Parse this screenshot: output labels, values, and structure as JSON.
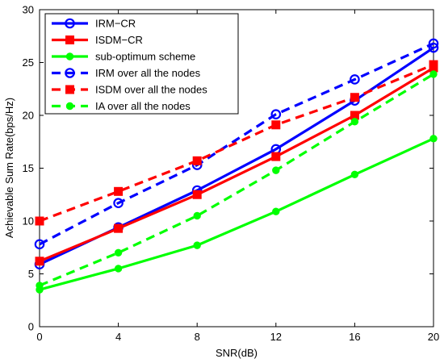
{
  "chart_data": {
    "type": "line",
    "title": "",
    "xlabel": "SNR(dB)",
    "ylabel": "Achievable Sum Rate(bps/Hz)",
    "x": [
      0,
      4,
      8,
      12,
      16,
      20
    ],
    "xlim": [
      0,
      20
    ],
    "ylim": [
      0,
      30
    ],
    "xticks": [
      "0",
      "4",
      "8",
      "12",
      "16",
      "20"
    ],
    "yticks": [
      "0",
      "5",
      "10",
      "15",
      "20",
      "25",
      "30"
    ],
    "grid": false,
    "legend_position": "top-left",
    "series": [
      {
        "name": "IRM−CR",
        "values": [
          5.9,
          9.4,
          12.9,
          16.8,
          21.4,
          26.4
        ],
        "color": "#0000ff",
        "dash": "solid",
        "marker": "circle"
      },
      {
        "name": "ISDM−CR",
        "values": [
          6.2,
          9.3,
          12.5,
          16.1,
          20.0,
          24.5
        ],
        "color": "#ff0000",
        "dash": "solid",
        "marker": "square"
      },
      {
        "name": "sub-optimum scheme",
        "values": [
          3.5,
          5.5,
          7.7,
          10.9,
          14.4,
          17.8
        ],
        "color": "#00ff00",
        "dash": "solid",
        "marker": "dot"
      },
      {
        "name": "IRM over all the nodes",
        "values": [
          7.8,
          11.7,
          15.3,
          20.1,
          23.4,
          26.8
        ],
        "color": "#0000ff",
        "dash": "dashed",
        "marker": "circle"
      },
      {
        "name": "ISDM over all the nodes",
        "values": [
          10.0,
          12.8,
          15.7,
          19.1,
          21.7,
          24.8
        ],
        "color": "#ff0000",
        "dash": "dashed",
        "marker": "square"
      },
      {
        "name": "IA over all the nodes",
        "values": [
          3.9,
          7.0,
          10.5,
          14.8,
          19.4,
          23.9
        ],
        "color": "#00ff00",
        "dash": "dashed",
        "marker": "dot"
      }
    ]
  }
}
